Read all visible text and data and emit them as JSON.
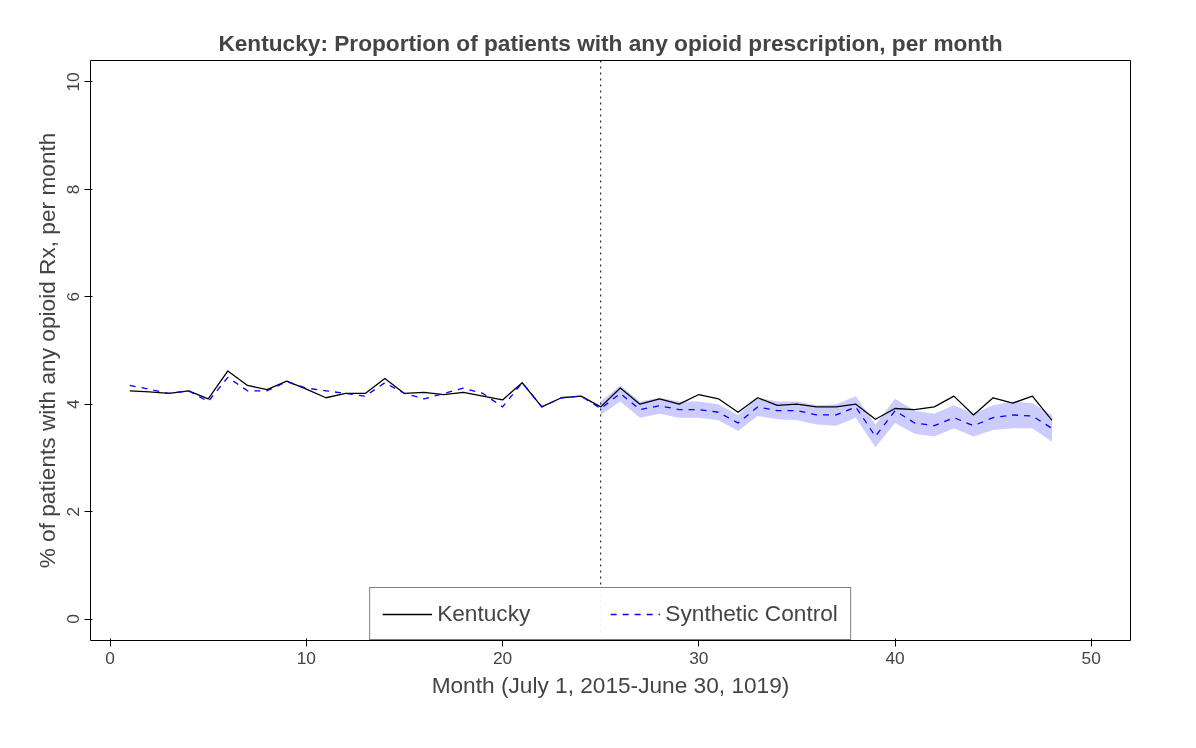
{
  "chart_data": {
    "type": "line",
    "title": "Kentucky: Proportion of patients with any opioid prescription, per month",
    "xlabel": "Month (July 1, 2015-June 30, 1019)",
    "ylabel": "% of patients with any opioid Rx, per month",
    "x": [
      1,
      2,
      3,
      4,
      5,
      6,
      7,
      8,
      9,
      10,
      11,
      12,
      13,
      14,
      15,
      16,
      17,
      18,
      19,
      20,
      21,
      22,
      23,
      24,
      25,
      26,
      27,
      28,
      29,
      30,
      31,
      32,
      33,
      34,
      35,
      36,
      37,
      38,
      39,
      40,
      41,
      42,
      43,
      44,
      45,
      46,
      47,
      48
    ],
    "series": [
      {
        "name": "Kentucky",
        "color": "#000000",
        "line_style": "solid",
        "values": [
          4.25,
          4.23,
          4.2,
          4.25,
          4.1,
          4.62,
          4.35,
          4.27,
          4.43,
          4.28,
          4.12,
          4.2,
          4.2,
          4.48,
          4.2,
          4.22,
          4.18,
          4.22,
          4.15,
          4.08,
          4.4,
          3.95,
          4.12,
          4.15,
          3.95,
          4.3,
          4.0,
          4.1,
          4.0,
          4.18,
          4.1,
          3.85,
          4.12,
          3.98,
          4.0,
          3.95,
          3.95,
          4.0,
          3.72,
          3.92,
          3.9,
          3.95,
          4.15,
          3.8,
          4.12,
          4.02,
          4.15,
          3.7
        ]
      },
      {
        "name": "Synthetic Control",
        "color": "#0000ff",
        "line_style": "dashed",
        "values": [
          4.35,
          4.28,
          4.2,
          4.25,
          4.05,
          4.5,
          4.25,
          4.25,
          4.42,
          4.3,
          4.25,
          4.2,
          4.15,
          4.4,
          4.2,
          4.1,
          4.2,
          4.3,
          4.2,
          3.95,
          4.4,
          3.95,
          4.12,
          4.15,
          3.92,
          4.2,
          3.9,
          3.97,
          3.9,
          3.9,
          3.85,
          3.65,
          3.95,
          3.88,
          3.88,
          3.8,
          3.8,
          3.95,
          3.4,
          3.88,
          3.65,
          3.6,
          3.75,
          3.6,
          3.75,
          3.8,
          3.78,
          3.55
        ],
        "lower": [
          null,
          null,
          null,
          null,
          null,
          null,
          null,
          null,
          null,
          null,
          null,
          null,
          null,
          null,
          null,
          null,
          null,
          null,
          null,
          null,
          null,
          null,
          null,
          null,
          3.8,
          4.05,
          3.75,
          3.82,
          3.75,
          3.75,
          3.7,
          3.5,
          3.78,
          3.72,
          3.7,
          3.62,
          3.6,
          3.75,
          3.2,
          3.65,
          3.45,
          3.4,
          3.55,
          3.4,
          3.52,
          3.55,
          3.55,
          3.3
        ],
        "upper": [
          null,
          null,
          null,
          null,
          null,
          null,
          null,
          null,
          null,
          null,
          null,
          null,
          null,
          null,
          null,
          null,
          null,
          null,
          null,
          null,
          null,
          null,
          null,
          null,
          4.05,
          4.35,
          4.05,
          4.12,
          4.05,
          4.05,
          4.0,
          3.8,
          4.12,
          4.05,
          4.05,
          3.98,
          4.0,
          4.15,
          3.62,
          4.1,
          3.88,
          3.82,
          3.98,
          3.82,
          3.98,
          4.05,
          4.02,
          3.8
        ]
      }
    ],
    "xlim": [
      -1,
      52
    ],
    "ylim": [
      -0.4,
      10.4
    ],
    "xticks": [
      0,
      10,
      20,
      30,
      40,
      50
    ],
    "yticks": [
      0,
      2,
      4,
      6,
      8,
      10
    ],
    "ref_lines": [
      {
        "axis": "x",
        "value": 25,
        "label": null,
        "line_style": "dotted",
        "color": "#000000"
      }
    ],
    "grid": false,
    "legend": "bottom",
    "marker": "none"
  }
}
